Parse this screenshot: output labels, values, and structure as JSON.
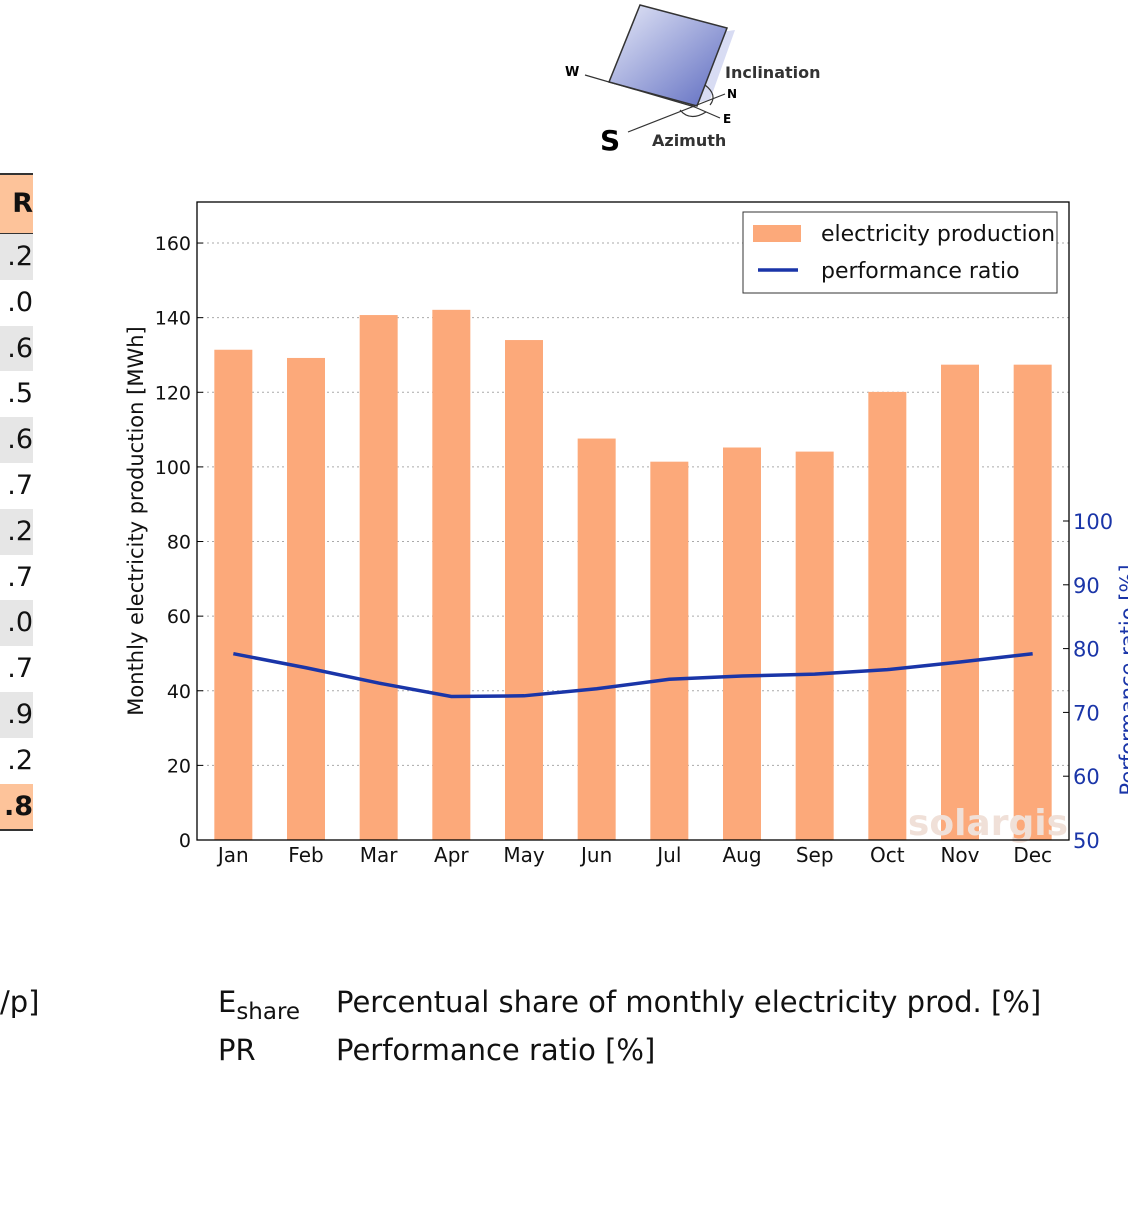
{
  "table": {
    "header": "R",
    "rows": [
      ".2",
      ".0",
      ".6",
      ".5",
      ".6",
      ".7",
      ".2",
      ".7",
      ".0",
      ".7",
      ".9",
      ".2"
    ],
    "total": ".8"
  },
  "diagram": {
    "labels": {
      "w": "W",
      "inclination": "Inclination",
      "n": "N",
      "e": "E",
      "s": "S",
      "azimuth": "Azimuth"
    }
  },
  "left_partial_text": "/p]",
  "footer_legend": [
    {
      "symbol": "E",
      "subscript": "share",
      "text": "Percentual share of monthly electricity prod. [%]"
    },
    {
      "symbol": "PR",
      "subscript": "",
      "text": "Performance ratio [%]"
    }
  ],
  "watermark": "solargis",
  "chart_data": {
    "type": "bar",
    "categories": [
      "Jan",
      "Feb",
      "Mar",
      "Apr",
      "May",
      "Jun",
      "Jul",
      "Aug",
      "Sep",
      "Oct",
      "Nov",
      "Dec"
    ],
    "series": [
      {
        "name": "electricity production",
        "type": "bar",
        "axis": "left",
        "color": "#fca97a",
        "values": [
          131.4,
          129.2,
          140.7,
          142.1,
          134.0,
          107.6,
          101.4,
          105.2,
          104.1,
          120.1,
          127.4,
          127.4
        ]
      },
      {
        "name": "performance ratio",
        "type": "line",
        "axis": "right",
        "color": "#1a35a8",
        "values": [
          79.2,
          77.0,
          74.6,
          72.5,
          72.6,
          73.7,
          75.2,
          75.7,
          76.0,
          76.7,
          77.9,
          79.2
        ]
      }
    ],
    "ylabel": "Monthly electricity production [MWh]",
    "ylabel_right": "Performance ratio [%]",
    "ylim": [
      0,
      171
    ],
    "yticks": [
      0,
      20,
      40,
      60,
      80,
      100,
      120,
      140,
      160
    ],
    "ylim_right": [
      50,
      150
    ],
    "yticks_right": [
      50,
      60,
      70,
      80,
      90,
      100
    ],
    "grid": true,
    "legend": "top-right"
  }
}
